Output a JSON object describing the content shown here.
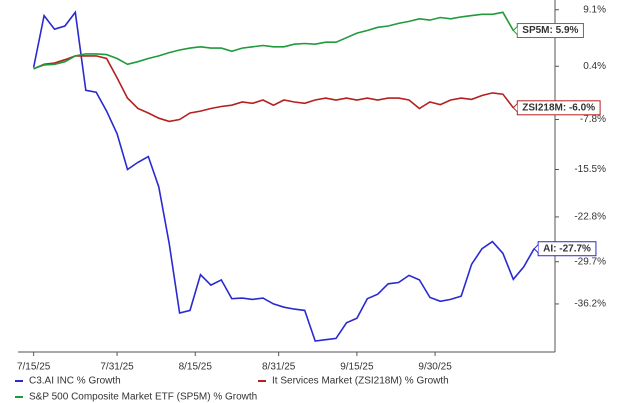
{
  "chart_data": {
    "type": "line",
    "x": [
      "7/15/25",
      "7/17/25",
      "7/19/25",
      "7/21/25",
      "7/23/25",
      "7/25/25",
      "7/27/25",
      "7/29/25",
      "7/31/25",
      "8/2/25",
      "8/4/25",
      "8/6/25",
      "8/8/25",
      "8/10/25",
      "8/12/25",
      "8/14/25",
      "8/16/25",
      "8/18/25",
      "8/20/25",
      "8/22/25",
      "8/24/25",
      "8/26/25",
      "8/28/25",
      "8/30/25",
      "9/1/25",
      "9/3/25",
      "9/5/25",
      "9/7/25",
      "9/9/25",
      "9/11/25",
      "9/13/25",
      "9/15/25",
      "9/17/25",
      "9/19/25",
      "9/21/25",
      "9/23/25",
      "9/25/25",
      "9/27/25",
      "9/29/25",
      "10/1/25",
      "10/3/25",
      "10/5/25",
      "10/7/25",
      "10/9/25",
      "10/11/25",
      "10/13/25",
      "10/15/25",
      "10/17/25",
      "10/19/25"
    ],
    "xlim": [
      "7/12/25",
      "10/23/25"
    ],
    "xticks": [
      "7/15/25",
      "7/31/25",
      "8/15/25",
      "8/31/25",
      "9/15/25",
      "9/30/25"
    ],
    "ylim": [
      -43.6,
      10.6
    ],
    "yticks": [
      {
        "value": 9.1,
        "label": "9.1%"
      },
      {
        "value": 0.4,
        "label": "0.4%"
      },
      {
        "value": -7.8,
        "label": "-7.8%"
      },
      {
        "value": -15.5,
        "label": "-15.5%"
      },
      {
        "value": -22.8,
        "label": "-22.8%"
      },
      {
        "value": -29.7,
        "label": "-29.7%"
      },
      {
        "value": -36.2,
        "label": "-36.2%"
      }
    ],
    "series": [
      {
        "name": "C3.AI INC % Growth",
        "color": "#2a2ad0",
        "end_label": "AI: -27.7%",
        "values": [
          0.2,
          8.2,
          6.1,
          6.6,
          8.7,
          -3.3,
          -3.6,
          -6.5,
          -10.0,
          -15.5,
          -14.4,
          -13.5,
          -18.2,
          -26.9,
          -37.6,
          -37.2,
          -31.7,
          -33.3,
          -32.5,
          -35.4,
          -35.3,
          -35.5,
          -35.3,
          -36.2,
          -36.7,
          -37.0,
          -37.2,
          -41.9,
          -41.7,
          -41.5,
          -39.1,
          -38.4,
          -35.4,
          -34.7,
          -33.1,
          -32.9,
          -31.8,
          -32.5,
          -35.2,
          -35.8,
          -35.5,
          -35.0,
          -30.1,
          -27.7,
          -26.6,
          -28.4,
          -32.4,
          -30.5,
          -27.7
        ]
      },
      {
        "name": "It Services Market (ZSI218M) % Growth",
        "color": "#b52020",
        "end_label": "ZSI218M: -6.0%",
        "values": [
          0.0,
          0.7,
          0.9,
          1.4,
          2.0,
          2.0,
          2.0,
          1.6,
          -1.4,
          -4.5,
          -6.1,
          -6.8,
          -7.6,
          -8.1,
          -7.8,
          -6.8,
          -6.5,
          -6.1,
          -5.8,
          -5.6,
          -5.1,
          -5.3,
          -4.8,
          -5.6,
          -4.8,
          -5.1,
          -5.3,
          -4.8,
          -4.5,
          -4.8,
          -4.5,
          -4.8,
          -4.5,
          -4.8,
          -4.5,
          -4.5,
          -4.8,
          -6.1,
          -5.1,
          -5.5,
          -4.8,
          -4.5,
          -4.7,
          -4.1,
          -3.7,
          -3.9,
          -6.0,
          null,
          null
        ]
      },
      {
        "name": "S&P 500 Composite Market ETF (SP5M) % Growth",
        "color": "#1f9a3c",
        "end_label": "SP5M: 5.9%",
        "values": [
          0.0,
          0.6,
          0.7,
          1.1,
          2.0,
          2.3,
          2.3,
          2.2,
          1.6,
          0.7,
          1.1,
          1.6,
          2.0,
          2.5,
          2.9,
          3.2,
          3.4,
          3.2,
          3.2,
          2.7,
          3.2,
          3.4,
          3.6,
          3.4,
          3.4,
          3.8,
          3.9,
          3.8,
          4.1,
          4.1,
          4.8,
          5.5,
          5.9,
          6.4,
          6.6,
          7.0,
          7.3,
          7.7,
          7.5,
          7.9,
          7.7,
          8.0,
          8.2,
          8.4,
          8.4,
          8.7,
          5.9,
          null,
          null
        ]
      }
    ]
  }
}
